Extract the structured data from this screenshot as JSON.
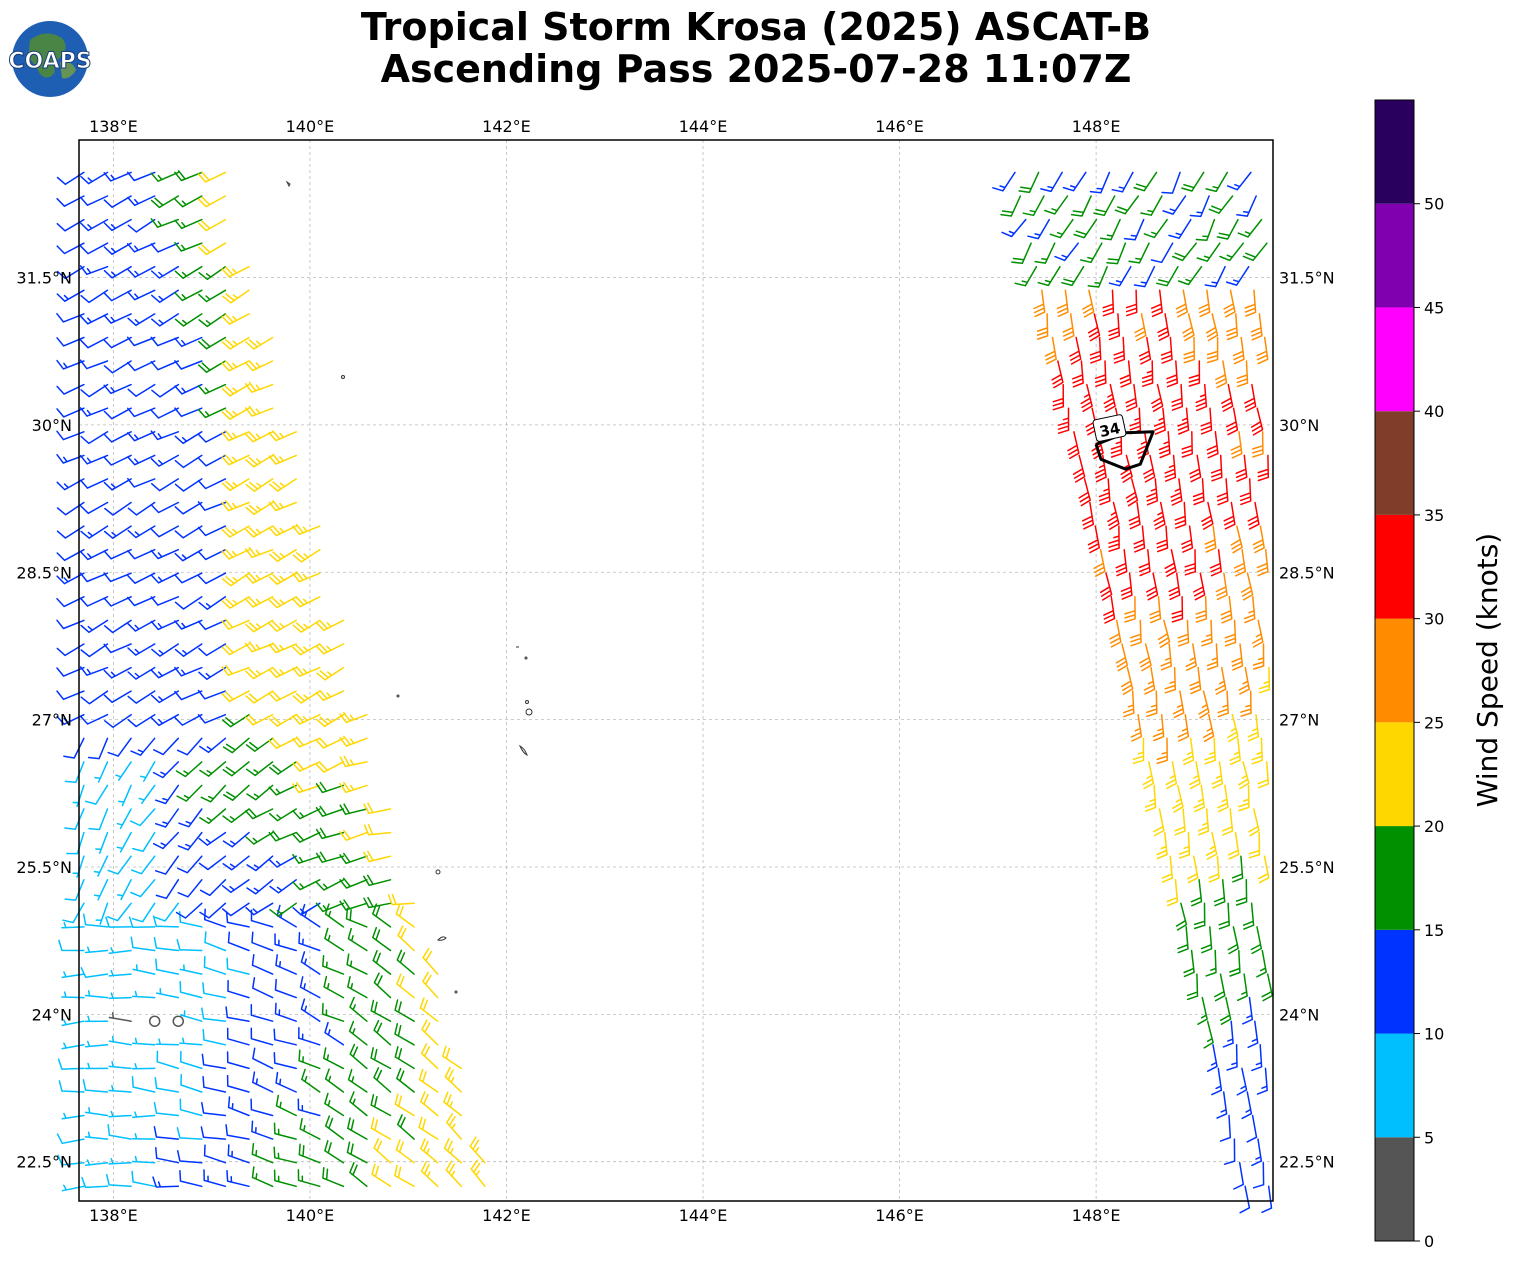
{
  "title": {
    "line1": "Tropical Storm Krosa (2025) ASCAT-B",
    "line2": "Ascending Pass 2025-07-28 11:07Z"
  },
  "logo": {
    "text": "COAPS"
  },
  "map": {
    "lon_range": [
      137.65,
      149.8
    ],
    "lat_range": [
      22.1,
      32.9
    ],
    "lon_ticks": [
      {
        "v": 138,
        "label": "138°E"
      },
      {
        "v": 140,
        "label": "140°E"
      },
      {
        "v": 142,
        "label": "142°E"
      },
      {
        "v": 144,
        "label": "144°E"
      },
      {
        "v": 146,
        "label": "146°E"
      },
      {
        "v": 148,
        "label": "148°E"
      }
    ],
    "lat_ticks": [
      {
        "v": 22.5,
        "label": "22.5°N"
      },
      {
        "v": 24,
        "label": "24°N"
      },
      {
        "v": 25.5,
        "label": "25.5°N"
      },
      {
        "v": 27,
        "label": "27°N"
      },
      {
        "v": 28.5,
        "label": "28.5°N"
      },
      {
        "v": 30,
        "label": "30°N"
      },
      {
        "v": 31.5,
        "label": "31.5°N"
      }
    ],
    "grid": true,
    "contour_label": "34",
    "contour_34kt": [
      [
        148.0,
        29.8
      ],
      [
        148.3,
        29.92
      ],
      [
        148.58,
        29.93
      ],
      [
        148.45,
        29.6
      ],
      [
        148.3,
        29.55
      ],
      [
        148.05,
        29.65
      ],
      [
        148.0,
        29.8
      ]
    ]
  },
  "colorbar": {
    "label": "Wind Speed (knots)",
    "bins": [
      {
        "min": 0,
        "max": 5,
        "color": "#555555"
      },
      {
        "min": 5,
        "max": 10,
        "color": "#00bfff"
      },
      {
        "min": 10,
        "max": 15,
        "color": "#0033ff"
      },
      {
        "min": 15,
        "max": 20,
        "color": "#009000"
      },
      {
        "min": 20,
        "max": 25,
        "color": "#ffd700"
      },
      {
        "min": 25,
        "max": 30,
        "color": "#ff8c00"
      },
      {
        "min": 30,
        "max": 35,
        "color": "#ff0000"
      },
      {
        "min": 35,
        "max": 40,
        "color": "#803d2a"
      },
      {
        "min": 40,
        "max": 45,
        "color": "#ff00ff"
      },
      {
        "min": 45,
        "max": 50,
        "color": "#8000b0"
      },
      {
        "min": 50,
        "max": 55,
        "color": "#2a005e"
      }
    ],
    "ticks": [
      "0",
      "5",
      "10",
      "15",
      "20",
      "25",
      "30",
      "35",
      "40",
      "45",
      "50"
    ]
  }
}
